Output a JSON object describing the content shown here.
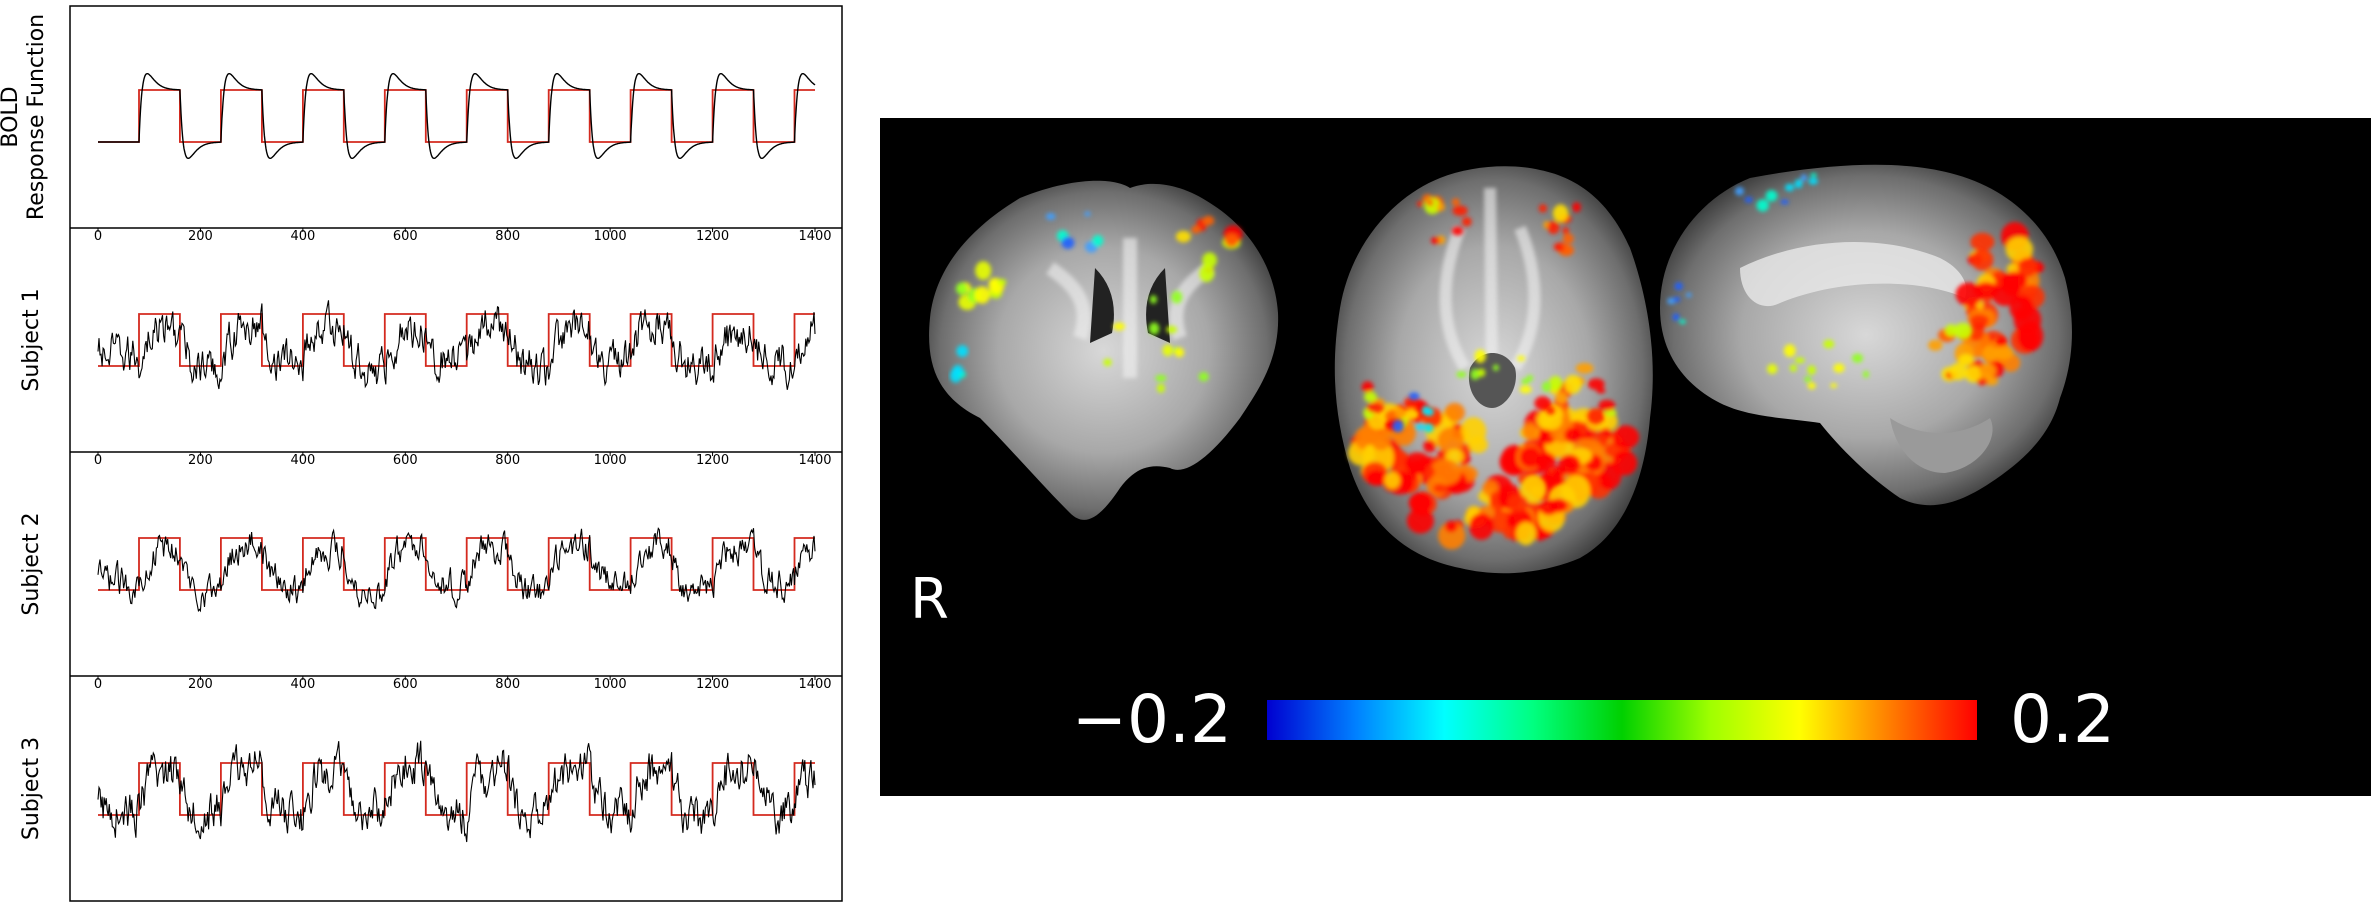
{
  "chart_data": [
    {
      "type": "line",
      "panel": "bold",
      "ylabel_lines": [
        "BOLD",
        "Response Function"
      ],
      "xlim": [
        0,
        1400
      ],
      "n_blocks": 8,
      "block_period": 160,
      "block_on_fraction": 0.5,
      "first_block_start": 80,
      "signal_start": 0,
      "signal_end": 1400,
      "series": [
        {
          "role": "stimulus",
          "color": "#d42a1f",
          "shape": "boxcar"
        },
        {
          "role": "response",
          "color": "#000000",
          "shape": "hrf-convolved"
        }
      ]
    },
    {
      "type": "line",
      "panel": "subject",
      "ylabel": "Subject 1",
      "xlim": [
        0,
        1400
      ],
      "xticks": [
        0,
        200,
        400,
        600,
        800,
        1000,
        1200,
        1400
      ],
      "block_period": 160,
      "first_block_start": 80,
      "noise": 0.32,
      "amplitude": 0.75,
      "series": [
        {
          "role": "stimulus",
          "color": "#d42a1f"
        },
        {
          "role": "timeseries",
          "color": "#000000"
        }
      ]
    },
    {
      "type": "line",
      "panel": "subject",
      "ylabel": "Subject 2",
      "xlim": [
        0,
        1400
      ],
      "xticks": [
        0,
        200,
        400,
        600,
        800,
        1000,
        1200,
        1400
      ],
      "block_period": 160,
      "first_block_start": 80,
      "noise": 0.25,
      "amplitude": 0.85,
      "series": [
        {
          "role": "stimulus",
          "color": "#d42a1f"
        },
        {
          "role": "timeseries",
          "color": "#000000"
        }
      ]
    },
    {
      "type": "line",
      "panel": "subject",
      "ylabel": "Subject 3",
      "xlim": [
        0,
        1400
      ],
      "xticks": [
        0,
        200,
        400,
        600,
        800,
        1000,
        1200,
        1400
      ],
      "block_period": 160,
      "first_block_start": 80,
      "noise": 0.35,
      "amplitude": 0.9,
      "series": [
        {
          "role": "stimulus",
          "color": "#d42a1f"
        },
        {
          "role": "timeseries",
          "color": "#000000"
        }
      ]
    },
    {
      "type": "heatmap",
      "panel": "brain-maps",
      "views": [
        "coronal",
        "axial",
        "sagittal"
      ],
      "side_label": "R",
      "colorbar": {
        "min_label": "−0.2",
        "max_label": "0.2",
        "range": [
          -0.2,
          0.2
        ],
        "colormap": [
          "#0000d0",
          "#0080ff",
          "#00ffff",
          "#00ff80",
          "#00d000",
          "#a0ff00",
          "#ffff00",
          "#ff8000",
          "#ff0000"
        ]
      }
    }
  ],
  "colors": {
    "stimulus": "#d42a1f",
    "signal": "#000000",
    "panel_bg": "#000000",
    "axes": "#000000"
  }
}
